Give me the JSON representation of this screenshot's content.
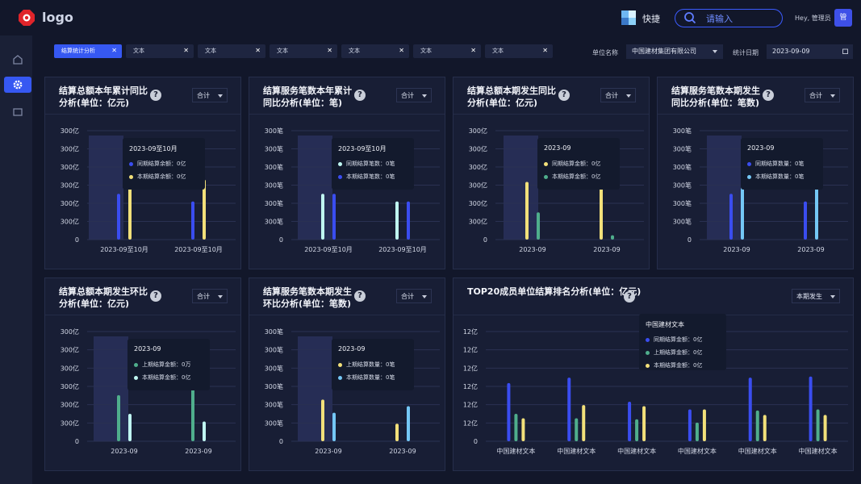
{
  "header": {
    "logo_text": "logo",
    "quick_label": "快捷",
    "search_placeholder": "请输入",
    "greeting": "Hey, 管理员",
    "avatar_text": "管"
  },
  "tabs": [
    {
      "label": "结算统计分析",
      "active": true
    },
    {
      "label": "文本",
      "active": false
    },
    {
      "label": "文本",
      "active": false
    },
    {
      "label": "文本",
      "active": false
    },
    {
      "label": "文本",
      "active": false
    },
    {
      "label": "文本",
      "active": false
    },
    {
      "label": "文本",
      "active": false
    }
  ],
  "filters": {
    "unit_label": "单位名称",
    "unit_value": "中国建材集团有限公司",
    "date_label": "统计日期",
    "date_value": "2023-09-09"
  },
  "colors": {
    "blue": "#3a4df0",
    "yellow": "#f2e07a",
    "green": "#4fae8c",
    "cyan": "#bff6f1",
    "sky": "#74c7f5"
  },
  "cards": [
    {
      "title": "结算总额本年累计同比\n分析(单位：亿元)",
      "select": "合计",
      "chart_data": {
        "type": "bar",
        "yticks": [
          "0",
          "300亿",
          "300亿",
          "300亿",
          "300亿",
          "300亿",
          "300亿"
        ],
        "categories": [
          "2023-09至10月",
          "2023-09至10月"
        ],
        "series": [
          {
            "name": "同期结算余额",
            "color": "blue",
            "values": [
              0.42,
              0.35
            ]
          },
          {
            "name": "本期结算余额",
            "color": "yellow",
            "values": [
              0.66,
              0.55
            ]
          }
        ],
        "tooltip": {
          "title": "2023-09至10月",
          "rows": [
            {
              "label": "同期结算余额：0亿",
              "color": "blue"
            },
            {
              "label": "本期结算余额：0亿",
              "color": "yellow"
            }
          ]
        }
      }
    },
    {
      "title": "结算服务笔数本年累计\n同比分析(单位：笔)",
      "select": "合计",
      "chart_data": {
        "type": "bar",
        "yticks": [
          "0",
          "300笔",
          "300笔",
          "300笔",
          "300笔",
          "300笔",
          "300笔"
        ],
        "categories": [
          "2023-09至10月",
          "2023-09至10月"
        ],
        "series": [
          {
            "name": "同期结算笔数",
            "color": "cyan",
            "values": [
              0.42,
              0.35
            ]
          },
          {
            "name": "本期结算笔数",
            "color": "blue",
            "values": [
              0.42,
              0.35
            ]
          }
        ],
        "tooltip": {
          "title": "2023-09至10月",
          "rows": [
            {
              "label": "同期结算笔数：0笔",
              "color": "cyan"
            },
            {
              "label": "本期结算笔数：0笔",
              "color": "blue"
            }
          ]
        }
      }
    },
    {
      "title": "结算总额本期发生同比\n分析(单位：亿元)",
      "select": "合计",
      "chart_data": {
        "type": "bar",
        "yticks": [
          "0",
          "300亿",
          "300亿",
          "300亿",
          "300亿",
          "300亿",
          "300亿"
        ],
        "categories": [
          "2023-09",
          "2023-09"
        ],
        "series": [
          {
            "name": "同期结算金额",
            "color": "yellow",
            "values": [
              0.53,
              0.47
            ]
          },
          {
            "name": "本期结算金额",
            "color": "green",
            "values": [
              0.25,
              0.04
            ]
          }
        ],
        "tooltip": {
          "title": "2023-09",
          "rows": [
            {
              "label": "同期结算金额：0亿",
              "color": "yellow"
            },
            {
              "label": "本期结算金额：0亿",
              "color": "green"
            }
          ]
        }
      }
    },
    {
      "title": "结算服务笔数本期发生\n同比分析(单位：笔数)",
      "select": "合计",
      "chart_data": {
        "type": "bar",
        "yticks": [
          "0",
          "300笔",
          "300笔",
          "300笔",
          "300笔",
          "300笔",
          "300笔"
        ],
        "categories": [
          "2023-09",
          "2023-09"
        ],
        "series": [
          {
            "name": "同期结算数量",
            "color": "blue",
            "values": [
              0.42,
              0.35
            ]
          },
          {
            "name": "本期结算数量",
            "color": "sky",
            "values": [
              0.66,
              0.55
            ]
          }
        ],
        "tooltip": {
          "title": "2023-09",
          "rows": [
            {
              "label": "同期结算数量：0笔",
              "color": "blue"
            },
            {
              "label": "本期结算数量：0笔",
              "color": "sky"
            }
          ]
        }
      }
    },
    {
      "title": "结算总额本期发生环比\n分析(单位：亿元)",
      "select": "合计",
      "chart_data": {
        "type": "bar",
        "yticks": [
          "0",
          "300亿",
          "300亿",
          "300亿",
          "300亿",
          "300亿",
          "300亿"
        ],
        "categories": [
          "2023-09",
          "2023-09"
        ],
        "series": [
          {
            "name": "上期结算金额",
            "color": "green",
            "values": [
              0.42,
              0.56
            ]
          },
          {
            "name": "本期结算金额",
            "color": "cyan",
            "values": [
              0.25,
              0.18
            ]
          }
        ],
        "tooltip": {
          "title": "2023-09",
          "rows": [
            {
              "label": "上期结算金额：0万",
              "color": "green"
            },
            {
              "label": "本期结算金额：0亿",
              "color": "cyan"
            }
          ]
        }
      }
    },
    {
      "title": "结算服务笔数本期发生\n环比分析(单位：笔数)",
      "select": "合计",
      "chart_data": {
        "type": "bar",
        "yticks": [
          "0",
          "300笔",
          "300笔",
          "300笔",
          "300笔",
          "300笔",
          "300笔"
        ],
        "categories": [
          "2023-09",
          "2023-09"
        ],
        "series": [
          {
            "name": "上期结算数量",
            "color": "yellow",
            "values": [
              0.38,
              0.16
            ]
          },
          {
            "name": "本期结算数量",
            "color": "sky",
            "values": [
              0.26,
              0.32
            ]
          }
        ],
        "tooltip": {
          "title": "2023-09",
          "rows": [
            {
              "label": "上期结算数量：0笔",
              "color": "yellow"
            },
            {
              "label": "本期结算数量：0笔",
              "color": "sky"
            }
          ]
        }
      }
    },
    {
      "title": "TOP20成员单位结算排名分析(单位：亿元)",
      "select": "本期发生",
      "chart_data": {
        "type": "bar",
        "yticks": [
          "0",
          "12亿",
          "12亿",
          "12亿",
          "12亿",
          "12亿",
          "12亿"
        ],
        "categories": [
          "中国建材文本",
          "中国建材文本",
          "中国建材文本",
          "中国建材文本",
          "中国建材文本",
          "中国建材文本"
        ],
        "series": [
          {
            "name": "同期结算金额",
            "color": "blue",
            "values": [
              0.53,
              0.58,
              0.36,
              0.29,
              0.58,
              0.59
            ]
          },
          {
            "name": "上期结算金额",
            "color": "green",
            "values": [
              0.25,
              0.21,
              0.2,
              0.17,
              0.28,
              0.29
            ]
          },
          {
            "name": "本期结算金额",
            "color": "yellow",
            "values": [
              0.21,
              0.33,
              0.32,
              0.29,
              0.24,
              0.24
            ]
          }
        ],
        "tooltip": {
          "title": "中国建材文本",
          "rows": [
            {
              "label": "同期结算金额：0亿",
              "color": "blue"
            },
            {
              "label": "上期结算金额：0亿",
              "color": "green"
            },
            {
              "label": "本期结算金额：0亿",
              "color": "yellow"
            }
          ]
        }
      }
    }
  ]
}
